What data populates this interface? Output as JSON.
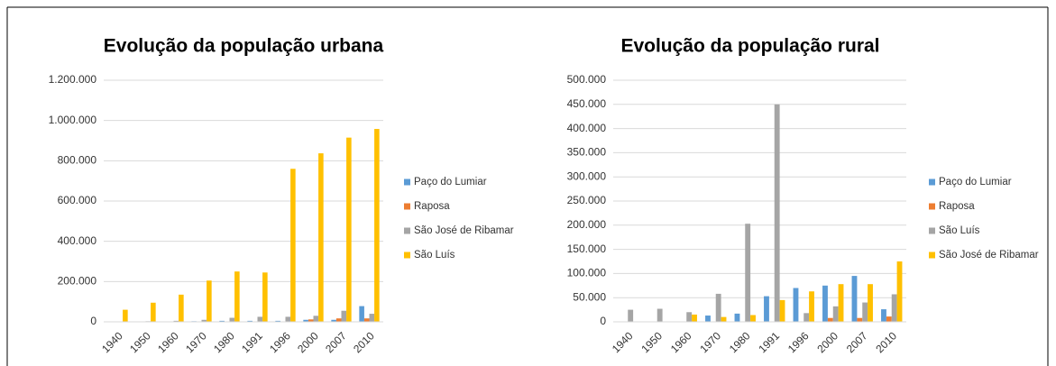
{
  "chart_data": [
    {
      "type": "bar",
      "title": "Evolução da população urbana",
      "categories": [
        "1940",
        "1950",
        "1960",
        "1970",
        "1980",
        "1991",
        "1996",
        "2000",
        "2007",
        "2010"
      ],
      "series": [
        {
          "name": "Paço do Lumiar",
          "color": "#5b9bd5",
          "values": [
            1000,
            1000,
            2000,
            3000,
            5000,
            5000,
            5000,
            10000,
            10000,
            78000
          ]
        },
        {
          "name": "Raposa",
          "color": "#ed7d31",
          "values": [
            0,
            0,
            0,
            0,
            0,
            0,
            0,
            12000,
            17000,
            17000
          ]
        },
        {
          "name": "São José de Ribamar",
          "color": "#a5a5a5",
          "values": [
            2000,
            3000,
            5000,
            10000,
            20000,
            25000,
            25000,
            30000,
            55000,
            40000
          ]
        },
        {
          "name": "São Luís",
          "color": "#ffc000",
          "values": [
            60000,
            95000,
            135000,
            205000,
            250000,
            245000,
            760000,
            837000,
            915000,
            958000
          ]
        }
      ],
      "ylim": [
        0,
        1200000
      ],
      "yticks": [
        0,
        {
          "value": 200000,
          "label": "200.000"
        },
        {
          "value": 400000,
          "label": "400.000"
        },
        {
          "value": 600000,
          "label": "600.000"
        },
        {
          "value": 800000,
          "label": "800.000"
        },
        {
          "value": 1000000,
          "label": "1.000.000"
        },
        {
          "value": 1200000,
          "label": "1.200.000"
        }
      ],
      "grid": true,
      "legend": "right"
    },
    {
      "type": "bar",
      "title": "Evolução da população rural",
      "categories": [
        "1940",
        "1950",
        "1960",
        "1970",
        "1980",
        "1991",
        "1996",
        "2000",
        "2007",
        "2010"
      ],
      "series": [
        {
          "name": "Paço do Lumiar",
          "color": "#5b9bd5",
          "values": [
            0,
            0,
            0,
            13000,
            17000,
            53000,
            70000,
            75000,
            95000,
            26000
          ]
        },
        {
          "name": "Raposa",
          "color": "#ed7d31",
          "values": [
            0,
            0,
            0,
            0,
            0,
            0,
            0,
            8000,
            8000,
            11000
          ]
        },
        {
          "name": "São Luís",
          "color": "#a5a5a5",
          "values": [
            25000,
            27000,
            20000,
            58000,
            203000,
            450000,
            18000,
            32000,
            40000,
            57000
          ]
        },
        {
          "name": "São José de Ribamar",
          "color": "#ffc000",
          "values": [
            0,
            0,
            15000,
            10000,
            14000,
            45000,
            63000,
            78000,
            78000,
            125000
          ]
        }
      ],
      "ylim": [
        0,
        500000
      ],
      "yticks": [
        0,
        {
          "value": 50000,
          "label": "50.000"
        },
        {
          "value": 100000,
          "label": "100.000"
        },
        {
          "value": 150000,
          "label": "150.000"
        },
        {
          "value": 200000,
          "label": "200.000"
        },
        {
          "value": 250000,
          "label": "250.000"
        },
        {
          "value": 300000,
          "label": "300.000"
        },
        {
          "value": 350000,
          "label": "350.000"
        },
        {
          "value": 400000,
          "label": "400.000"
        },
        {
          "value": 450000,
          "label": "450.000"
        },
        {
          "value": 500000,
          "label": "500.000"
        }
      ],
      "grid": true,
      "legend": "right"
    }
  ]
}
